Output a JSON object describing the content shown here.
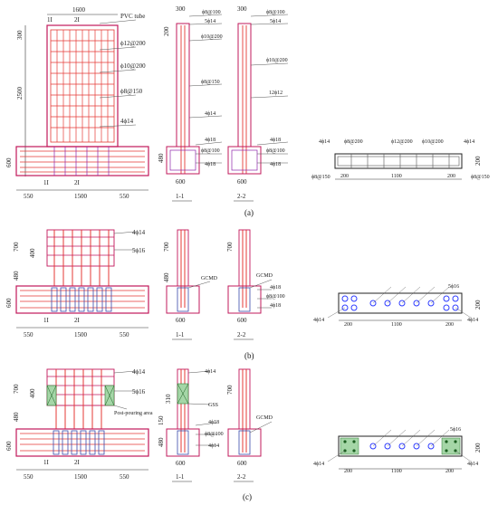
{
  "panel_a": {
    "caption": "(a)",
    "elev": {
      "width": "1600",
      "h_cap": "300",
      "h_wall": "2500",
      "h_base": "600",
      "sec1": "1I",
      "sec2": "2I",
      "tube": "PVC tube",
      "r1": "ϕ12@200",
      "r2": "ϕ10@200",
      "r3": "ϕ8@150",
      "r4": "4ϕ14",
      "w1": "550",
      "w2": "1500",
      "w3": "550"
    },
    "s11": {
      "w": "300",
      "h": "200",
      "l1": "ϕ8@100",
      "l2": "5ϕ14",
      "l3": "ϕ10@200",
      "l4": "ϕ8@150",
      "l5": "4ϕ14",
      "l6": "4ϕ18",
      "l7": "ϕ8@100",
      "l8": "4ϕ18",
      "h480": "480",
      "w600": "600",
      "name": "1-1"
    },
    "s22": {
      "w": "300",
      "l1": "ϕ8@100",
      "l2": "5ϕ14",
      "l3": "ϕ10@200",
      "l4": "12ϕ12",
      "l5": "4ϕ18",
      "l6": "ϕ8@100",
      "l7": "4ϕ18",
      "w600": "600",
      "name": "2-2"
    },
    "plan": {
      "l1": "4ϕ14",
      "l2": "ϕ8@200",
      "l3": "ϕ12@200",
      "l4": "ϕ10@200",
      "l5": "4ϕ14",
      "h": "200",
      "l6": "ϕ8@150",
      "l7": "ϕ8@150",
      "d1": "200",
      "d2": "1100",
      "d3": "200"
    }
  },
  "panel_b": {
    "caption": "(b)",
    "elev": {
      "r1": "4ϕ14",
      "r2": "5ϕ16",
      "h700": "700",
      "h400": "400",
      "h480": "480",
      "h600": "600",
      "sec1": "1I",
      "sec2": "2I",
      "w1": "550",
      "w2": "1500",
      "w3": "550"
    },
    "s11": {
      "h700": "700",
      "h480": "480",
      "w600": "600",
      "name": "1-1"
    },
    "s22": {
      "h700": "700",
      "gcmd": "GCMD",
      "l1": "4ϕ18",
      "l2": "ϕ8@100",
      "l3": "4ϕ18",
      "w600": "600",
      "name": "2-2"
    },
    "s11_gcmd": "GCMD",
    "plan": {
      "l1": "5ϕ16",
      "l2": "4ϕ14",
      "l3": "4ϕ14",
      "h": "200",
      "d1": "200",
      "d2": "1100",
      "d3": "200"
    }
  },
  "panel_c": {
    "caption": "(c)",
    "elev": {
      "r1": "4ϕ14",
      "r2": "5ϕ16",
      "h700": "700",
      "h400": "400",
      "h480": "480",
      "h600": "600",
      "post": "Post-pouring area",
      "sec1": "1I",
      "sec2": "2I",
      "w1": "550",
      "w2": "1500",
      "w3": "550"
    },
    "s11": {
      "l1": "4ϕ14",
      "h310": "310",
      "gss": "GSS",
      "l2": "4ϕ18",
      "l3": "ϕ8@100",
      "l4": "4ϕ14",
      "h480": "480",
      "h150": "150",
      "w600": "600",
      "name": "1-1"
    },
    "s22": {
      "h700": "700",
      "gcmd": "GCMD",
      "w600": "600",
      "name": "2-2"
    },
    "plan": {
      "l1": "5ϕ16",
      "l2": "4ϕ14",
      "l3": "4ϕ14",
      "h": "200",
      "d1": "200",
      "d2": "1100",
      "d3": "200"
    }
  }
}
